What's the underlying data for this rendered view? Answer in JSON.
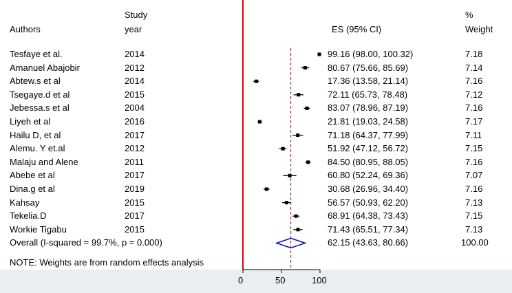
{
  "header": {
    "authors_label": "Authors",
    "study_label": "Study",
    "year_label": "year",
    "es_label": "ES (95% CI)",
    "pct_label": "%",
    "weight_label": "Weight"
  },
  "studies": [
    {
      "author": "Tesfaye et al.",
      "year": "2014",
      "es_text": "99.16 (98.00, 100.32)",
      "weight": "7.18"
    },
    {
      "author": "Amanuel Abajobir",
      "year": "2012",
      "es_text": "80.67 (75.66, 85.69)",
      "weight": "7.14"
    },
    {
      "author": "Abtew.s et al",
      "year": "2014",
      "es_text": "17.36 (13.58, 21.14)",
      "weight": "7.16"
    },
    {
      "author": "Tsegaye.d et al",
      "year": "2015",
      "es_text": "72.11 (65.73, 78.48)",
      "weight": "7.12"
    },
    {
      "author": "Jebessa.s et al",
      "year": "2004",
      "es_text": "83.07 (78.96, 87.19)",
      "weight": "7.16"
    },
    {
      "author": "Liyeh et al",
      "year": "2016",
      "es_text": "21.81 (19.03, 24.58)",
      "weight": "7.17"
    },
    {
      "author": "Hailu D, et al",
      "year": "2017",
      "es_text": "71.18 (64.37, 77.99)",
      "weight": "7.11"
    },
    {
      "author": "Alemu. Y et.al",
      "year": "2012",
      "es_text": "51.92 (47.12, 56.72)",
      "weight": "7.15"
    },
    {
      "author": "Malaju and Alene",
      "year": "2011",
      "es_text": "84.50 (80.95, 88.05)",
      "weight": "7.16"
    },
    {
      "author": "Abebe et al",
      "year": "2017",
      "es_text": "60.80 (52.24, 69.36)",
      "weight": "7.07"
    },
    {
      "author": "Dina.g et al",
      "year": "2019",
      "es_text": "30.68 (26.96, 34.40)",
      "weight": "7.16"
    },
    {
      "author": "Kahsay",
      "year": "2015",
      "es_text": "56.57 (50.93, 62.20)",
      "weight": "7.13"
    },
    {
      "author": "Tekelia.D",
      "year": "2017",
      "es_text": "68.91 (64.38, 73.43)",
      "weight": "7.15"
    },
    {
      "author": "Workie Tigabu",
      "year": "2015",
      "es_text": "71.43 (65.51, 77.34)",
      "weight": "7.13"
    }
  ],
  "overall": {
    "label": "Overall  (I-squared = 99.7%, p = 0.000)",
    "es_text": "62.15 (43.63, 80.66)",
    "weight": "100.00"
  },
  "note": "NOTE: Weights are from random effects analysis",
  "colors": {
    "null_line": "#e00000",
    "pooled_line": "#8b1a1a",
    "diamond": "#0000cc",
    "marker": "#000000",
    "axis_band": "#e9eef2"
  },
  "chart_data": {
    "type": "forest",
    "x_ticks": [
      0,
      50,
      100
    ],
    "null_value": 0,
    "pooled_line_value": 62.15,
    "studies": [
      {
        "es": 99.16,
        "lo": 98.0,
        "hi": 100.32
      },
      {
        "es": 80.67,
        "lo": 75.66,
        "hi": 85.69
      },
      {
        "es": 17.36,
        "lo": 13.58,
        "hi": 21.14
      },
      {
        "es": 72.11,
        "lo": 65.73,
        "hi": 78.48
      },
      {
        "es": 83.07,
        "lo": 78.96,
        "hi": 87.19
      },
      {
        "es": 21.81,
        "lo": 19.03,
        "hi": 24.58
      },
      {
        "es": 71.18,
        "lo": 64.37,
        "hi": 77.99
      },
      {
        "es": 51.92,
        "lo": 47.12,
        "hi": 56.72
      },
      {
        "es": 84.5,
        "lo": 80.95,
        "hi": 88.05
      },
      {
        "es": 60.8,
        "lo": 52.24,
        "hi": 69.36
      },
      {
        "es": 30.68,
        "lo": 26.96,
        "hi": 34.4
      },
      {
        "es": 56.57,
        "lo": 50.93,
        "hi": 62.2
      },
      {
        "es": 68.91,
        "lo": 64.38,
        "hi": 73.43
      },
      {
        "es": 71.43,
        "lo": 65.51,
        "hi": 77.34
      }
    ],
    "overall": {
      "es": 62.15,
      "lo": 43.63,
      "hi": 80.66
    }
  }
}
